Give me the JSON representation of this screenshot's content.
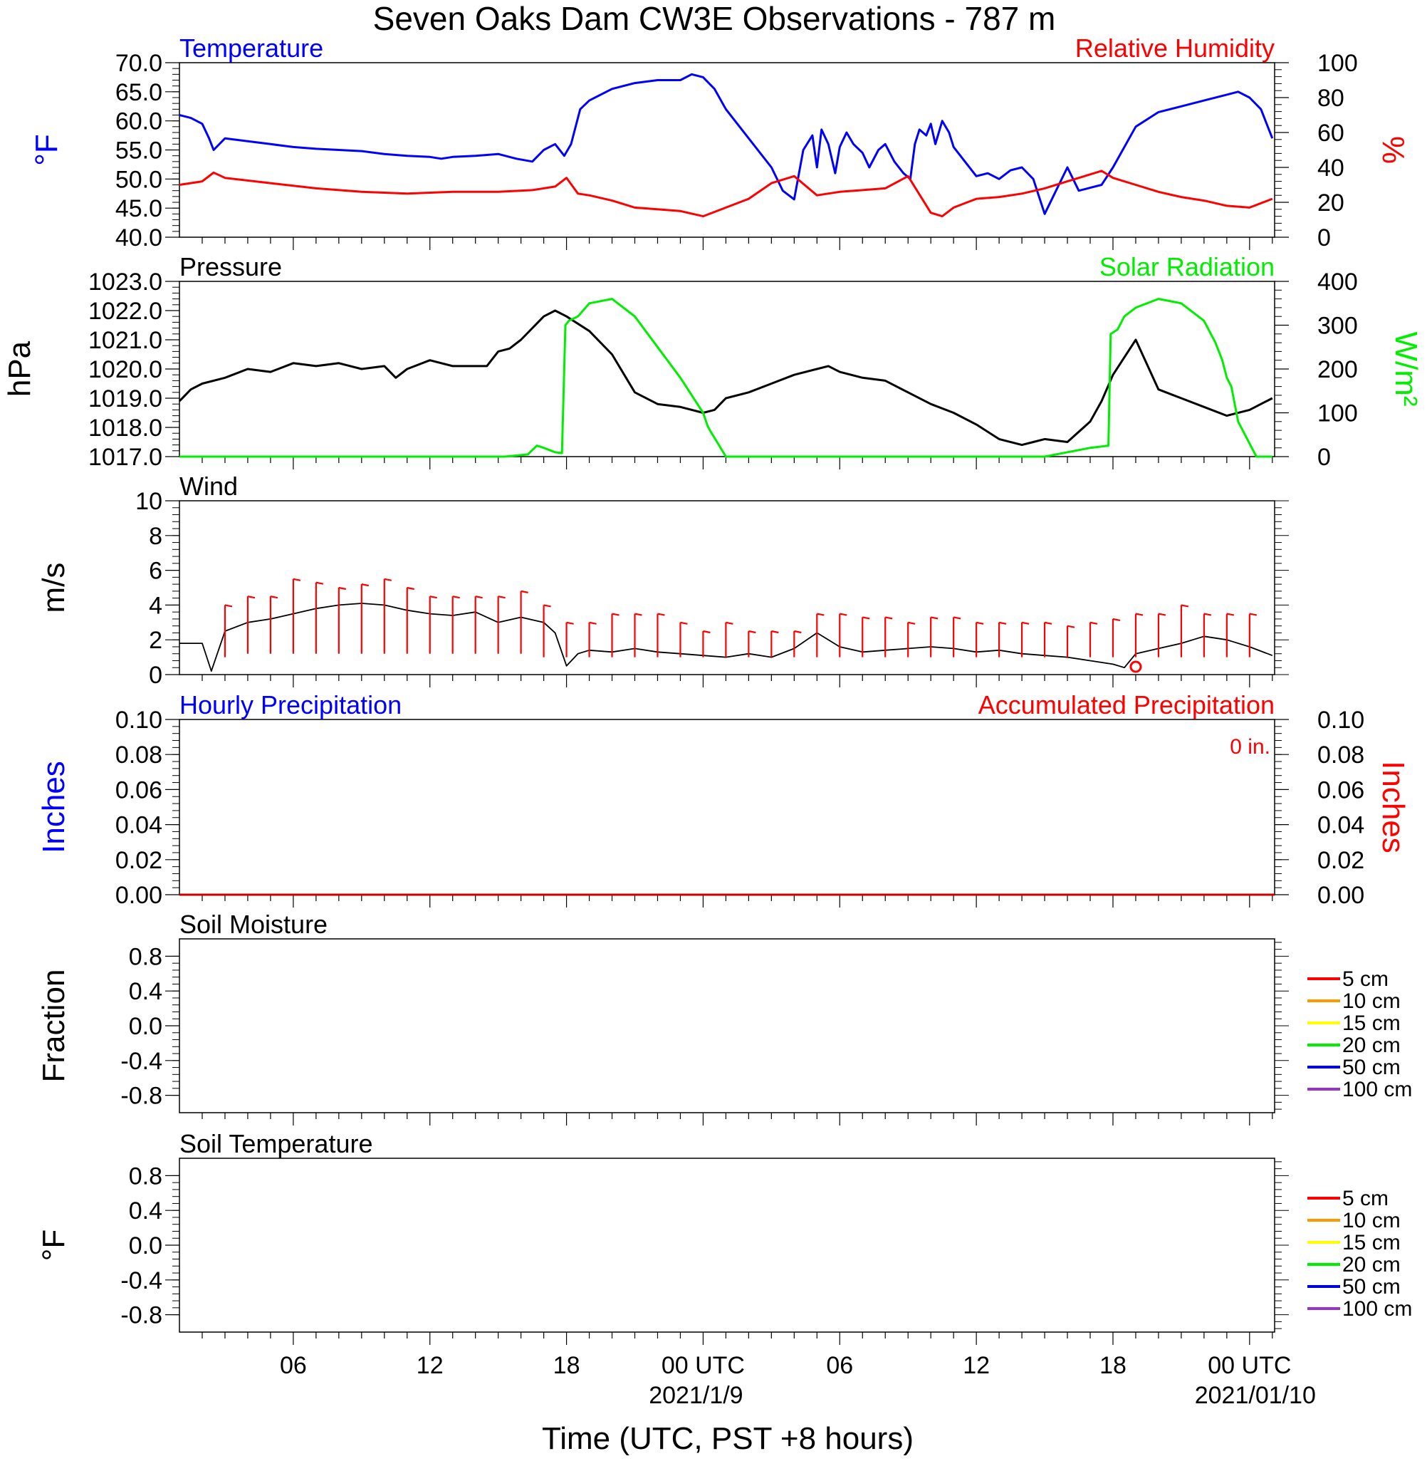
{
  "figure": {
    "title": "Seven Oaks Dam CW3E Observations - 787 m",
    "xlabel": "Time (UTC, PST +8 hours)",
    "x_ticks": [
      {
        "hour": 6,
        "label": "06"
      },
      {
        "hour": 12,
        "label": "12"
      },
      {
        "hour": 18,
        "label": "18"
      },
      {
        "hour": 24,
        "label": "00 UTC"
      },
      {
        "hour": 30,
        "label": "06"
      },
      {
        "hour": 36,
        "label": "12"
      },
      {
        "hour": 42,
        "label": "18"
      },
      {
        "hour": 48,
        "label": "00 UTC"
      }
    ],
    "date_labels": [
      {
        "hour": 24,
        "label": "2021/1/9"
      },
      {
        "hour": 48,
        "label": "2021/01/10"
      }
    ],
    "x_range_hours": [
      1,
      49.1
    ]
  },
  "colors": {
    "temperature": "#0000ff",
    "humidity": "#ff0000",
    "pressure": "#000000",
    "solar": "#00ee00",
    "wind": "#000000",
    "barb": "#ff0000",
    "hourly_precip": "#0000ff",
    "accum_precip": "#ff0000",
    "soil_5": "#ff0000",
    "soil_10": "#ff9900",
    "soil_15": "#ffff00",
    "soil_20": "#00ee00",
    "soil_50": "#0000dd",
    "soil_100": "#9933cc"
  },
  "chart_data": [
    {
      "type": "line",
      "id": "temp_rh",
      "title_left": "Temperature",
      "title_right": "Relative Humidity",
      "ylabel_left": "°F",
      "ylabel_right": "%",
      "ylim_left": [
        40,
        70
      ],
      "ylim_right": [
        0,
        100
      ],
      "yticks_left": [
        "40.0",
        "45.0",
        "50.0",
        "55.0",
        "60.0",
        "65.0",
        "70.0"
      ],
      "yticks_right": [
        "0",
        "20",
        "40",
        "60",
        "80",
        "100"
      ],
      "series": [
        {
          "name": "Temperature",
          "axis": "left",
          "x": [
            1.0,
            1.5,
            2.0,
            2.3,
            2.5,
            3.0,
            4.0,
            5.0,
            6.0,
            7.0,
            8.0,
            9.0,
            10.0,
            11.0,
            12.0,
            12.5,
            13.0,
            14.0,
            15.0,
            15.8,
            16.5,
            17.0,
            17.5,
            17.9,
            18.2,
            18.6,
            19.0,
            20.0,
            21.0,
            22.0,
            23.0,
            23.5,
            24.0,
            24.5,
            25.0,
            26.0,
            27.0,
            27.5,
            28.0,
            28.4,
            28.8,
            29.0,
            29.2,
            29.5,
            29.8,
            30.0,
            30.3,
            30.6,
            31.0,
            31.3,
            31.7,
            32.0,
            32.4,
            32.8,
            33.1,
            33.3,
            33.5,
            33.8,
            34.0,
            34.2,
            34.5,
            34.8,
            35.0,
            35.5,
            36.0,
            36.5,
            37.0,
            37.5,
            38.0,
            38.5,
            39.0,
            39.5,
            40.0,
            40.5,
            41.0,
            41.5,
            42.0,
            42.5,
            43.0,
            44.0,
            45.0,
            46.0,
            47.0,
            47.5,
            48.0,
            48.5,
            49.0
          ],
          "values": [
            61.0,
            60.5,
            59.5,
            57.0,
            55.0,
            57.0,
            56.5,
            56.0,
            55.5,
            55.2,
            55.0,
            54.8,
            54.3,
            54.0,
            53.8,
            53.5,
            53.8,
            54.0,
            54.3,
            53.5,
            53.0,
            55.0,
            56.0,
            54.0,
            56.0,
            62.0,
            63.5,
            65.5,
            66.5,
            67.0,
            67.0,
            68.0,
            67.5,
            65.5,
            62.0,
            57.0,
            52.0,
            48.0,
            46.5,
            55.0,
            57.5,
            52.0,
            58.5,
            56.0,
            51.0,
            55.5,
            58.0,
            56.0,
            54.5,
            52.0,
            55.0,
            56.0,
            53.0,
            51.0,
            50.0,
            56.0,
            58.5,
            57.5,
            59.5,
            56.0,
            60.0,
            58.0,
            55.5,
            53.0,
            50.5,
            51.0,
            50.0,
            51.5,
            52.0,
            50.0,
            44.0,
            48.0,
            52.0,
            48.0,
            48.5,
            49.0,
            52.0,
            55.5,
            59.0,
            61.5,
            62.5,
            63.5,
            64.5,
            65.0,
            64.0,
            62.0,
            57.0
          ]
        },
        {
          "name": "Relative Humidity",
          "axis": "right",
          "x": [
            1.0,
            2.0,
            2.5,
            3.0,
            5.0,
            7.0,
            9.0,
            11.0,
            13.0,
            15.0,
            16.5,
            17.5,
            18.0,
            18.5,
            19.0,
            20.0,
            21.0,
            23.0,
            24.0,
            25.0,
            26.0,
            27.0,
            28.0,
            29.0,
            30.0,
            31.0,
            32.0,
            33.0,
            34.0,
            34.5,
            35.0,
            36.0,
            37.0,
            38.0,
            39.0,
            40.0,
            41.0,
            41.5,
            42.0,
            43.0,
            44.0,
            45.0,
            46.0,
            47.0,
            48.0,
            49.0
          ],
          "values": [
            30,
            32,
            37,
            34,
            31,
            28,
            26,
            25,
            26,
            26,
            27,
            29,
            34,
            25,
            24,
            21,
            17,
            15,
            12,
            17,
            22,
            31,
            35,
            24,
            26,
            27,
            28,
            35,
            14,
            12,
            17,
            22,
            23,
            25,
            28,
            32,
            36,
            38,
            34,
            30,
            26,
            23,
            21,
            18,
            17,
            22
          ]
        }
      ]
    },
    {
      "type": "line",
      "id": "pressure_solar",
      "title_left": "Pressure",
      "title_right": "Solar Radiation",
      "ylabel_left": "hPa",
      "ylabel_right": "W/m²",
      "ylim_left": [
        1017,
        1023
      ],
      "ylim_right": [
        0,
        400
      ],
      "yticks_left": [
        "1017.0",
        "1018.0",
        "1019.0",
        "1020.0",
        "1021.0",
        "1022.0",
        "1023.0"
      ],
      "yticks_right": [
        "0",
        "100",
        "200",
        "300",
        "400"
      ],
      "series": [
        {
          "name": "Pressure",
          "axis": "left",
          "x": [
            1.0,
            1.5,
            2.0,
            3.0,
            4.0,
            5.0,
            6.0,
            7.0,
            8.0,
            9.0,
            10.0,
            10.5,
            11.0,
            12.0,
            13.0,
            14.0,
            14.5,
            15.0,
            15.5,
            16.0,
            17.0,
            17.5,
            18.0,
            19.0,
            20.0,
            21.0,
            22.0,
            23.0,
            24.0,
            24.5,
            25.0,
            26.0,
            27.0,
            28.0,
            29.0,
            29.5,
            30.0,
            31.0,
            32.0,
            33.0,
            34.0,
            35.0,
            36.0,
            37.0,
            38.0,
            38.5,
            39.0,
            40.0,
            41.0,
            41.5,
            42.0,
            42.5,
            43.0,
            44.0,
            45.0,
            46.0,
            47.0,
            48.0,
            49.0
          ],
          "values": [
            1018.9,
            1019.3,
            1019.5,
            1019.7,
            1020.0,
            1019.9,
            1020.2,
            1020.1,
            1020.2,
            1020.0,
            1020.1,
            1019.7,
            1020.0,
            1020.3,
            1020.1,
            1020.1,
            1020.1,
            1020.6,
            1020.7,
            1021.0,
            1021.8,
            1022.0,
            1021.8,
            1021.3,
            1020.5,
            1019.2,
            1018.8,
            1018.7,
            1018.5,
            1018.6,
            1019.0,
            1019.2,
            1019.5,
            1019.8,
            1020.0,
            1020.1,
            1019.9,
            1019.7,
            1019.6,
            1019.2,
            1018.8,
            1018.5,
            1018.1,
            1017.6,
            1017.4,
            1017.5,
            1017.6,
            1017.5,
            1018.2,
            1018.9,
            1019.8,
            1020.4,
            1021.0,
            1019.3,
            1019.0,
            1018.7,
            1018.4,
            1018.6,
            1019.0
          ]
        },
        {
          "name": "Solar Radiation",
          "axis": "right",
          "x": [
            1.0,
            15.3,
            16.3,
            16.7,
            17.0,
            17.5,
            17.8,
            17.95,
            18.1,
            18.5,
            19.0,
            20.0,
            21.0,
            22.0,
            23.0,
            24.0,
            24.2,
            24.3,
            25.0,
            39.0,
            41.0,
            41.8,
            41.9,
            42.2,
            42.5,
            43.0,
            44.0,
            45.0,
            46.0,
            46.5,
            46.8,
            47.0,
            47.2,
            47.5,
            47.8,
            48.3,
            49.0
          ],
          "values": [
            0,
            0,
            5,
            25,
            20,
            10,
            8,
            300,
            310,
            320,
            350,
            360,
            320,
            250,
            180,
            100,
            70,
            60,
            0,
            0,
            20,
            25,
            280,
            290,
            320,
            340,
            360,
            350,
            310,
            260,
            220,
            180,
            160,
            80,
            50,
            0,
            0
          ]
        }
      ]
    },
    {
      "type": "line",
      "id": "wind",
      "title_left": "Wind",
      "ylabel_left": "m/s",
      "ylim_left": [
        0,
        10
      ],
      "yticks_left": [
        "0",
        "2",
        "4",
        "6",
        "8",
        "10"
      ],
      "series": [
        {
          "name": "Wind",
          "axis": "left",
          "x": [
            1.0,
            2.0,
            2.4,
            3.0,
            4.0,
            5.0,
            6.0,
            7.0,
            8.0,
            9.0,
            10.0,
            11.0,
            12.0,
            13.0,
            14.0,
            15.0,
            16.0,
            17.0,
            17.5,
            18.0,
            18.5,
            19.0,
            20.0,
            21.0,
            22.0,
            23.0,
            24.0,
            25.0,
            26.0,
            27.0,
            28.0,
            29.0,
            30.0,
            31.0,
            32.0,
            33.0,
            34.0,
            35.0,
            36.0,
            37.0,
            38.0,
            39.0,
            40.0,
            41.0,
            42.0,
            42.5,
            43.0,
            44.0,
            45.0,
            46.0,
            47.0,
            48.0,
            49.0
          ],
          "values": [
            1.8,
            1.8,
            0.2,
            2.5,
            3.0,
            3.2,
            3.5,
            3.8,
            4.0,
            4.1,
            4.0,
            3.7,
            3.5,
            3.4,
            3.6,
            3.0,
            3.3,
            3.0,
            2.4,
            0.5,
            1.2,
            1.4,
            1.3,
            1.5,
            1.3,
            1.2,
            1.1,
            1.0,
            1.2,
            1.0,
            1.5,
            2.4,
            1.6,
            1.3,
            1.4,
            1.5,
            1.6,
            1.5,
            1.3,
            1.4,
            1.2,
            1.1,
            1.0,
            0.8,
            0.6,
            0.4,
            1.2,
            1.5,
            1.8,
            2.2,
            2.0,
            1.6,
            1.1
          ]
        }
      ],
      "barbs": {
        "hours": [
          3,
          4,
          5,
          6,
          7,
          8,
          9,
          10,
          11,
          12,
          13,
          14,
          15,
          16,
          17,
          18,
          19,
          20,
          21,
          22,
          23,
          24,
          25,
          26,
          27,
          28,
          29,
          30,
          31,
          32,
          33,
          34,
          35,
          36,
          37,
          38,
          39,
          40,
          41,
          42,
          43,
          44,
          45,
          46,
          47,
          48
        ],
        "speeds": [
          4.0,
          4.5,
          4.5,
          5.5,
          5.3,
          5.0,
          5.2,
          5.5,
          5.0,
          4.5,
          4.5,
          4.5,
          4.5,
          4.8,
          4.0,
          3.0,
          3.0,
          3.5,
          3.5,
          3.5,
          3.0,
          2.5,
          3.0,
          2.5,
          2.5,
          2.5,
          3.5,
          3.5,
          3.3,
          3.3,
          3.0,
          3.3,
          3.3,
          3.0,
          3.0,
          3.0,
          3.0,
          2.8,
          3.0,
          3.2,
          3.5,
          3.5,
          4.0,
          3.5,
          3.5,
          3.5
        ]
      },
      "calm_marker_hour": 43.0
    },
    {
      "type": "line",
      "id": "precip",
      "title_left": "Hourly Precipitation",
      "title_right": "Accumulated Precipitation",
      "annotation": "0 in.",
      "ylabel_left": "Inches",
      "ylabel_right": "Inches",
      "ylim_left": [
        0,
        0.1
      ],
      "ylim_right": [
        0,
        0.1
      ],
      "yticks_left": [
        "0.00",
        "0.02",
        "0.04",
        "0.06",
        "0.08",
        "0.10"
      ],
      "yticks_right": [
        "0.00",
        "0.02",
        "0.04",
        "0.06",
        "0.08",
        "0.10"
      ],
      "series": [
        {
          "name": "Accumulated Precipitation",
          "axis": "left",
          "x": [
            1.0,
            49.1
          ],
          "values": [
            0,
            0
          ]
        }
      ]
    },
    {
      "type": "line",
      "id": "soil_moist",
      "title_left": "Soil Moisture",
      "ylabel_left": "Fraction",
      "ylim_left": [
        -1.0,
        1.0
      ],
      "yticks_left": [
        "-0.8",
        "-0.4",
        "0.0",
        "0.4",
        "0.8"
      ],
      "legend": [
        "5 cm",
        "10 cm",
        "15 cm",
        "20 cm",
        "50 cm",
        "100 cm"
      ],
      "series": []
    },
    {
      "type": "line",
      "id": "soil_temp",
      "title_left": "Soil Temperature",
      "ylabel_left": "°F",
      "ylim_left": [
        -1.0,
        1.0
      ],
      "yticks_left": [
        "-0.8",
        "-0.4",
        "0.0",
        "0.4",
        "0.8"
      ],
      "legend": [
        "5 cm",
        "10 cm",
        "15 cm",
        "20 cm",
        "50 cm",
        "100 cm"
      ],
      "series": []
    }
  ]
}
